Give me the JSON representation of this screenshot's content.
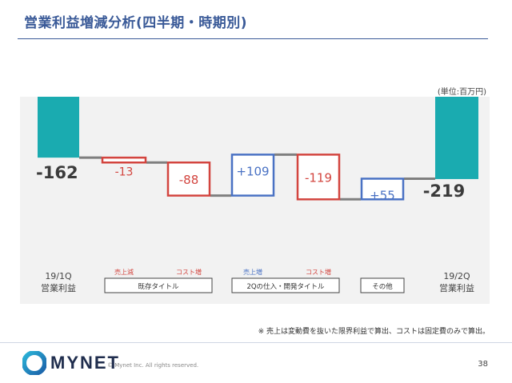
{
  "title": "営業利益増減分析(四半期・時期別)",
  "unit": "(単位:百万円)",
  "footnote": "※ 売上は変動費を抜いた限界利益で算出、コストは固定費のみで算出。",
  "footer": {
    "brand": "MYNET",
    "copyright": "© Mynet Inc. All rights reserved.",
    "page": "38"
  },
  "colors": {
    "teal": "#1aabb0",
    "red": "#d3453f",
    "blue": "#4a72c4",
    "connector": "#7f7f7f",
    "panel": "#f2f2f2"
  },
  "chart_data": {
    "type": "waterfall",
    "bars": [
      {
        "label": "-162",
        "kind": "total",
        "value": -162,
        "color": "teal",
        "cat_line1": "19/1Q",
        "cat_line2": "営業利益"
      },
      {
        "label": "-13",
        "kind": "delta",
        "value": -13,
        "color": "red",
        "cat_top": "売上減"
      },
      {
        "label": "-88",
        "kind": "delta",
        "value": -88,
        "color": "red",
        "cat_top": "コスト増"
      },
      {
        "label": "+109",
        "kind": "delta",
        "value": 109,
        "color": "blue",
        "cat_top": "売上増"
      },
      {
        "label": "-119",
        "kind": "delta",
        "value": -119,
        "color": "red",
        "cat_top": "コスト増"
      },
      {
        "label": "+55",
        "kind": "delta",
        "value": 55,
        "color": "blue",
        "cat_top": ""
      },
      {
        "label": "-219",
        "kind": "total",
        "value": -219,
        "color": "teal",
        "cat_line1": "19/2Q",
        "cat_line2": "営業利益"
      }
    ],
    "groups": [
      {
        "label": "既存タイトル",
        "from": 1,
        "to": 2
      },
      {
        "label": "2Qの仕入・開発タイトル",
        "from": 3,
        "to": 4
      },
      {
        "label": "その他",
        "from": 5,
        "to": 5
      }
    ]
  }
}
